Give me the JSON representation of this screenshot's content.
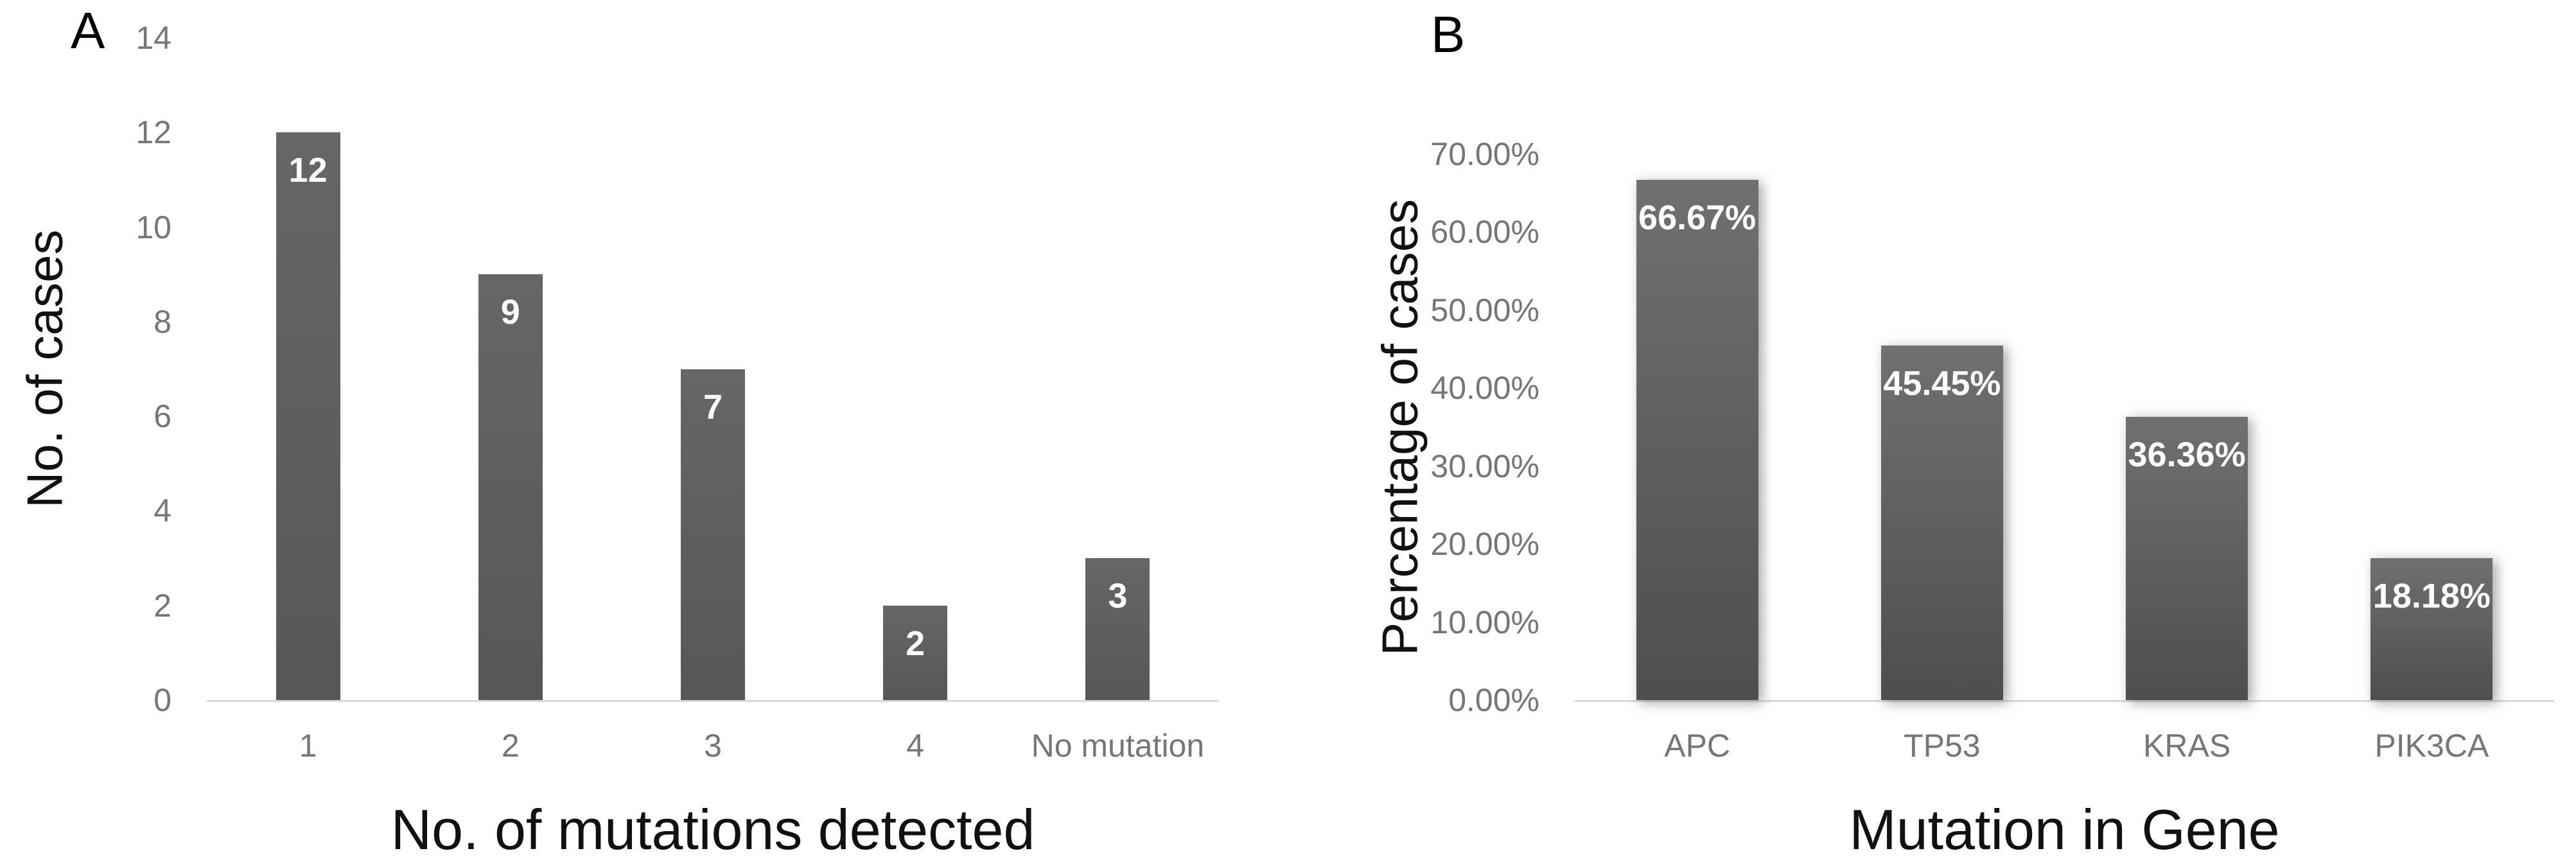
{
  "figure": {
    "background": "#ffffff",
    "panel_a_letter": "A",
    "panel_b_letter": "B"
  },
  "colors": {
    "bar_a_top": "#666666",
    "bar_a_bottom": "#575757",
    "bar_b_top": "#707070",
    "bar_b_bottom": "#4e4e4e",
    "value_label_text": "#ffffff",
    "tick_text": "#767676",
    "axis_title_text": "#111111",
    "axis_line": "#d9d9d9"
  },
  "chart_data": [
    {
      "panel": "A",
      "type": "bar",
      "title": "",
      "categories": [
        "1",
        "2",
        "3",
        "4",
        "No mutation"
      ],
      "values": [
        12,
        9,
        7,
        2,
        3
      ],
      "value_labels": [
        "12",
        "9",
        "7",
        "2",
        "3"
      ],
      "xlabel": "No. of mutations detected",
      "ylabel": "No. of cases",
      "ylim": [
        0,
        14
      ],
      "ytick_step": 2,
      "yticks": [
        "14",
        "12",
        "10",
        "8",
        "6",
        "4",
        "2",
        "0"
      ],
      "grid": false,
      "legend": "none",
      "bar_color_top": "#666666",
      "bar_color_bottom": "#575757"
    },
    {
      "panel": "B",
      "type": "bar",
      "title": "",
      "categories": [
        "APC",
        "TP53",
        "KRAS",
        "PIK3CA"
      ],
      "values": [
        66.67,
        45.45,
        36.36,
        18.18
      ],
      "value_labels": [
        "66.67%",
        "45.45%",
        "36.36%",
        "18.18%"
      ],
      "xlabel": "Mutation in Gene",
      "ylabel": "Percentage of cases",
      "ylim": [
        0,
        70
      ],
      "ytick_step": 10,
      "yticks": [
        "70.00%",
        "60.00%",
        "50.00%",
        "40.00%",
        "30.00%",
        "20.00%",
        "10.00%",
        "0.00%"
      ],
      "grid": false,
      "legend": "none",
      "bar_color_top": "#707070",
      "bar_color_bottom": "#4e4e4e"
    }
  ]
}
